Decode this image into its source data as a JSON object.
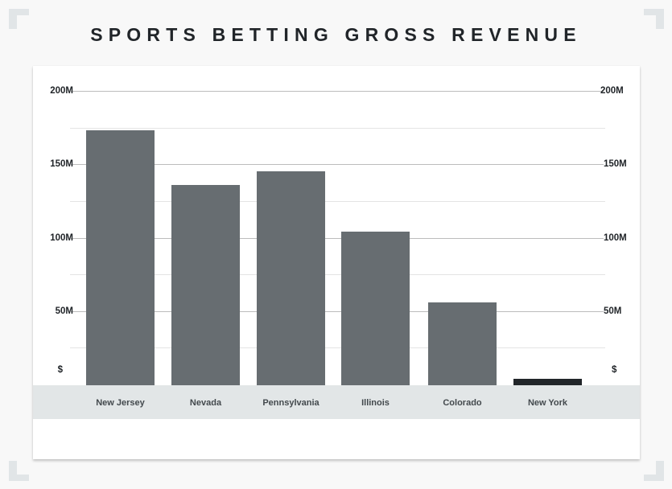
{
  "title": "SPORTS BETTING GROSS REVENUE",
  "colors": {
    "bar": "#676d71",
    "bar_highlight": "#212529",
    "axis_band": "#e2e6e7",
    "background": "#f8f8f8"
  },
  "y_axis": {
    "ticks": [
      {
        "label": "200M",
        "value": 200
      },
      {
        "label": "150M",
        "value": 150
      },
      {
        "label": "100M",
        "value": 100
      },
      {
        "label": "50M",
        "value": 50
      },
      {
        "label": "$",
        "value": 0
      }
    ]
  },
  "chart_data": {
    "type": "bar",
    "title": "SPORTS BETTING GROSS REVENUE",
    "xlabel": "",
    "ylabel": "",
    "unit": "USD (millions)",
    "categories": [
      "New Jersey",
      "Nevada",
      "Pennsylvania",
      "Illinois",
      "Colorado",
      "New York"
    ],
    "values": [
      173,
      136,
      145,
      104,
      56,
      4
    ],
    "highlighted_category": "New York",
    "ylim": [
      0,
      200
    ],
    "y_ticks": [
      "$",
      "50M",
      "100M",
      "150M",
      "200M"
    ],
    "y_axis_both_sides": true,
    "grid": true,
    "legend": null
  }
}
